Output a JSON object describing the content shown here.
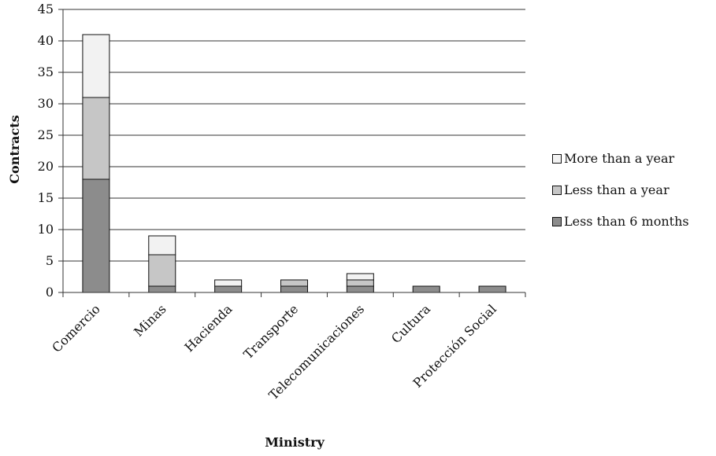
{
  "chart_data": {
    "type": "bar",
    "stacked": true,
    "categories": [
      "Comercio",
      "Minas",
      "Hacienda",
      "Transporte",
      "Telecomunicaciones",
      "Cultura",
      "Protección Social"
    ],
    "series": [
      {
        "name": "Less than 6 months",
        "values": [
          18,
          1,
          1,
          1,
          1,
          1,
          1
        ],
        "color": "#8c8c8c"
      },
      {
        "name": "Less than a year",
        "values": [
          13,
          5,
          0,
          1,
          1,
          0,
          0
        ],
        "color": "#c6c6c6"
      },
      {
        "name": "More than a year",
        "values": [
          10,
          3,
          1,
          0,
          1,
          0,
          0
        ],
        "color": "#f2f2f2"
      }
    ],
    "legend_order": [
      "More than a year",
      "Less than a year",
      "Less than 6 months"
    ],
    "xlabel": "Ministry",
    "ylabel": "Contracts",
    "ylim": [
      0,
      45
    ],
    "yticks": [
      0,
      5,
      10,
      15,
      20,
      25,
      30,
      35,
      40,
      45
    ],
    "grid": "horizontal",
    "legend_position": "right"
  }
}
